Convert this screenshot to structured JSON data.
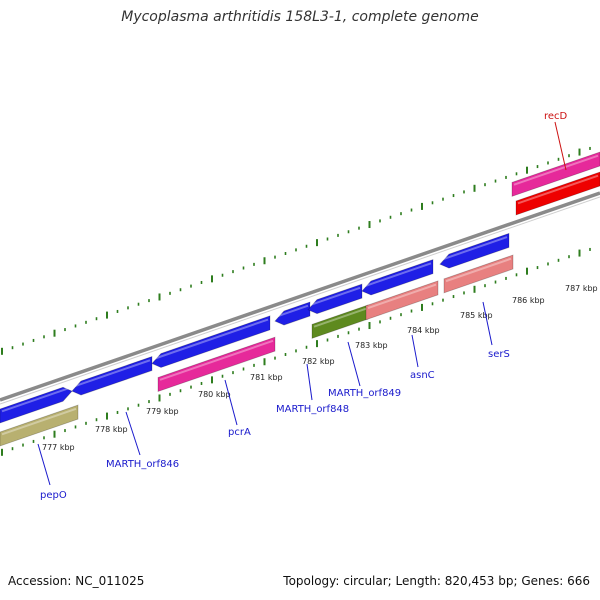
{
  "title": "Mycoplasma arthritidis 158L3-1, complete genome",
  "footer": {
    "accession": "Accession: NC_011025",
    "summary": "Topology: circular; Length: 820,453 bp; Genes: 666"
  },
  "colors": {
    "backbone": "#8a8a8a",
    "tick": "#2e7d1e",
    "gene_blue": "#1f1fe6",
    "gene_magenta": "#e6299a",
    "gene_red": "#ee0000",
    "gene_salmon": "#e88080",
    "gene_olive": "#5e8a1f",
    "gene_khaki": "#b8b070",
    "label_blue": "#1a1acc",
    "label_red": "#cc1111"
  },
  "ticks": [
    {
      "label": "777 kbp"
    },
    {
      "label": "778 kbp"
    },
    {
      "label": "779 kbp"
    },
    {
      "label": "780 kbp"
    },
    {
      "label": "781 kbp"
    },
    {
      "label": "782 kbp"
    },
    {
      "label": "783 kbp"
    },
    {
      "label": "784 kbp"
    },
    {
      "label": "785 kbp"
    },
    {
      "label": "786 kbp"
    },
    {
      "label": "787 kbp"
    }
  ],
  "gene_labels": [
    {
      "name": "pepO",
      "color": "label_blue"
    },
    {
      "name": "MARTH_orf846",
      "color": "label_blue"
    },
    {
      "name": "pcrA",
      "color": "label_blue"
    },
    {
      "name": "MARTH_orf848",
      "color": "label_blue"
    },
    {
      "name": "MARTH_orf849",
      "color": "label_blue"
    },
    {
      "name": "asnC",
      "color": "label_blue"
    },
    {
      "name": "serS",
      "color": "label_blue"
    },
    {
      "name": "recD",
      "color": "label_red"
    }
  ]
}
